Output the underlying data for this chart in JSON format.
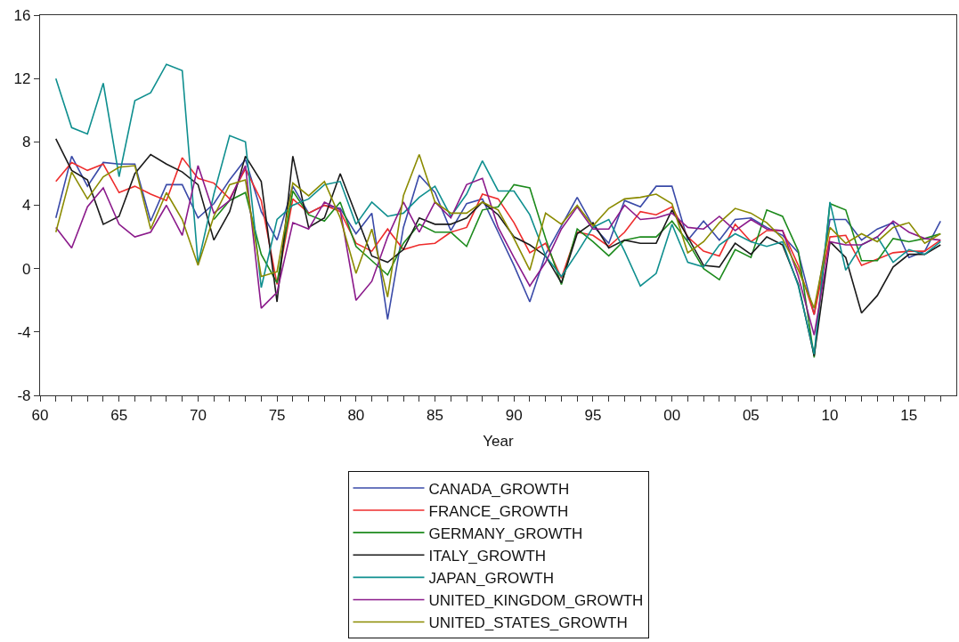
{
  "chart_data": {
    "type": "line",
    "xlabel": "Year",
    "x": [
      1961,
      1962,
      1963,
      1964,
      1965,
      1966,
      1967,
      1968,
      1969,
      1970,
      1971,
      1972,
      1973,
      1974,
      1975,
      1976,
      1977,
      1978,
      1979,
      1980,
      1981,
      1982,
      1983,
      1984,
      1985,
      1986,
      1987,
      1988,
      1989,
      1990,
      1991,
      1992,
      1993,
      1994,
      1995,
      1996,
      1997,
      1998,
      1999,
      2000,
      2001,
      2002,
      2003,
      2004,
      2005,
      2006,
      2007,
      2008,
      2009,
      2010,
      2011,
      2012,
      2013,
      2014,
      2015,
      2016,
      2017
    ],
    "series": [
      {
        "name": "CANADA_GROWTH",
        "color": "#3a4aa8",
        "values": [
          3.2,
          7.1,
          5.2,
          6.7,
          6.6,
          6.6,
          3.0,
          5.3,
          5.3,
          3.2,
          4.1,
          5.6,
          6.9,
          3.6,
          1.8,
          5.2,
          3.5,
          4.0,
          3.8,
          2.2,
          3.5,
          -3.2,
          2.6,
          5.9,
          4.8,
          2.4,
          4.1,
          4.4,
          2.3,
          0.2,
          -2.1,
          0.9,
          2.7,
          4.5,
          2.7,
          1.6,
          4.3,
          3.9,
          5.2,
          5.2,
          1.8,
          3.0,
          1.8,
          3.1,
          3.2,
          2.6,
          2.1,
          1.0,
          -2.9,
          3.1,
          3.1,
          1.8,
          2.5,
          2.9,
          0.7,
          1.1,
          3.0
        ]
      },
      {
        "name": "FRANCE_GROWTH",
        "color": "#ee2c2c",
        "values": [
          5.5,
          6.7,
          6.2,
          6.6,
          4.8,
          5.2,
          4.7,
          4.3,
          7.0,
          5.7,
          5.4,
          4.4,
          6.3,
          4.3,
          -1.0,
          4.4,
          3.5,
          4.0,
          3.6,
          1.6,
          1.1,
          2.5,
          1.2,
          1.5,
          1.6,
          2.3,
          2.6,
          4.7,
          4.4,
          2.9,
          1.0,
          1.6,
          -0.6,
          2.3,
          2.1,
          1.4,
          2.3,
          3.6,
          3.4,
          3.9,
          2.0,
          1.1,
          0.8,
          2.8,
          1.7,
          2.4,
          2.4,
          0.2,
          -2.9,
          2.0,
          2.1,
          0.2,
          0.6,
          1.0,
          1.1,
          1.1,
          1.8
        ]
      },
      {
        "name": "GERMANY_GROWTH",
        "color": "#1c8a1c",
        "values": [
          null,
          null,
          null,
          null,
          null,
          null,
          null,
          null,
          null,
          null,
          3.1,
          4.3,
          4.8,
          0.9,
          -0.9,
          4.9,
          3.4,
          3.0,
          4.2,
          1.4,
          0.5,
          -0.4,
          1.6,
          2.8,
          2.3,
          2.3,
          1.4,
          3.7,
          3.9,
          5.3,
          5.1,
          1.9,
          -1.0,
          2.5,
          1.7,
          0.8,
          1.8,
          2.0,
          2.0,
          3.0,
          1.7,
          0.0,
          -0.7,
          1.2,
          0.7,
          3.7,
          3.3,
          1.1,
          -5.6,
          4.1,
          3.7,
          0.5,
          0.5,
          1.9,
          1.7,
          1.9,
          2.2
        ]
      },
      {
        "name": "ITALY_GROWTH",
        "color": "#1a1a1a",
        "values": [
          8.2,
          6.2,
          5.6,
          2.8,
          3.3,
          6.0,
          7.2,
          6.6,
          6.1,
          5.3,
          1.8,
          3.6,
          7.1,
          5.5,
          -2.1,
          7.1,
          2.6,
          3.2,
          6.0,
          3.4,
          0.8,
          0.4,
          1.2,
          3.2,
          2.8,
          2.8,
          3.2,
          4.2,
          3.4,
          2.0,
          1.5,
          0.8,
          -0.9,
          2.2,
          2.9,
          1.3,
          1.8,
          1.6,
          1.6,
          3.7,
          2.0,
          0.2,
          0.1,
          1.6,
          0.9,
          2.0,
          1.5,
          -1.0,
          -5.5,
          1.7,
          0.7,
          -2.8,
          -1.7,
          0.1,
          0.9,
          0.9,
          1.5
        ]
      },
      {
        "name": "JAPAN_GROWTH",
        "color": "#0f8f8f",
        "values": [
          12.0,
          8.9,
          8.5,
          11.7,
          5.8,
          10.6,
          11.1,
          12.9,
          12.5,
          0.3,
          4.7,
          8.4,
          8.0,
          -1.2,
          3.1,
          4.0,
          4.4,
          5.3,
          5.5,
          2.8,
          4.2,
          3.3,
          3.5,
          4.5,
          5.2,
          3.3,
          4.7,
          6.8,
          4.9,
          4.9,
          3.4,
          0.8,
          -0.5,
          1.0,
          2.6,
          3.1,
          1.1,
          -1.1,
          -0.3,
          2.8,
          0.4,
          0.1,
          1.5,
          2.2,
          1.7,
          1.4,
          1.7,
          -1.1,
          -5.4,
          4.2,
          -0.1,
          1.5,
          2.0,
          0.4,
          1.2,
          0.9,
          1.7
        ]
      },
      {
        "name": "UNITED_KINGDOM_GROWTH",
        "color": "#8b1a8b",
        "values": [
          2.6,
          1.3,
          3.9,
          5.1,
          2.8,
          2.0,
          2.3,
          4.0,
          2.1,
          6.5,
          3.5,
          4.3,
          6.5,
          -2.5,
          -1.5,
          2.9,
          2.5,
          4.2,
          3.7,
          -2.0,
          -0.8,
          2.0,
          4.2,
          2.3,
          4.2,
          3.2,
          5.3,
          5.7,
          2.6,
          0.7,
          -1.1,
          0.4,
          2.5,
          3.9,
          2.5,
          2.5,
          4.0,
          3.1,
          3.2,
          3.5,
          2.6,
          2.5,
          3.3,
          2.4,
          3.1,
          2.5,
          2.4,
          -0.5,
          -4.2,
          1.7,
          1.5,
          1.5,
          2.0,
          3.0,
          2.3,
          1.9,
          1.8
        ]
      },
      {
        "name": "UNITED_STATES_GROWTH",
        "color": "#8b8b00",
        "values": [
          2.3,
          6.1,
          4.4,
          5.8,
          6.4,
          6.5,
          2.5,
          4.8,
          3.1,
          0.2,
          3.3,
          5.3,
          5.6,
          -0.5,
          -0.2,
          5.4,
          4.6,
          5.5,
          3.2,
          -0.3,
          2.5,
          -1.8,
          4.6,
          7.2,
          4.2,
          3.5,
          3.5,
          4.2,
          3.7,
          1.9,
          -0.1,
          3.5,
          2.8,
          4.0,
          2.7,
          3.8,
          4.4,
          4.5,
          4.7,
          4.1,
          1.0,
          1.7,
          2.9,
          3.8,
          3.5,
          2.9,
          1.9,
          -0.1,
          -2.5,
          2.6,
          1.6,
          2.2,
          1.7,
          2.6,
          2.9,
          1.6,
          2.2
        ]
      }
    ],
    "xlim": [
      1960,
      2018
    ],
    "xticks": [
      {
        "value": 1960,
        "label": "60"
      },
      {
        "value": 1961,
        "label": null
      },
      {
        "value": 1962,
        "label": null
      },
      {
        "value": 1963,
        "label": null
      },
      {
        "value": 1964,
        "label": null
      },
      {
        "value": 1965,
        "label": "65"
      },
      {
        "value": 1966,
        "label": null
      },
      {
        "value": 1967,
        "label": null
      },
      {
        "value": 1968,
        "label": null
      },
      {
        "value": 1969,
        "label": null
      },
      {
        "value": 1970,
        "label": "70"
      },
      {
        "value": 1971,
        "label": null
      },
      {
        "value": 1972,
        "label": null
      },
      {
        "value": 1973,
        "label": null
      },
      {
        "value": 1974,
        "label": null
      },
      {
        "value": 1975,
        "label": "75"
      },
      {
        "value": 1976,
        "label": null
      },
      {
        "value": 1977,
        "label": null
      },
      {
        "value": 1978,
        "label": null
      },
      {
        "value": 1979,
        "label": null
      },
      {
        "value": 1980,
        "label": "80"
      },
      {
        "value": 1981,
        "label": null
      },
      {
        "value": 1982,
        "label": null
      },
      {
        "value": 1983,
        "label": null
      },
      {
        "value": 1984,
        "label": null
      },
      {
        "value": 1985,
        "label": "85"
      },
      {
        "value": 1986,
        "label": null
      },
      {
        "value": 1987,
        "label": null
      },
      {
        "value": 1988,
        "label": null
      },
      {
        "value": 1989,
        "label": null
      },
      {
        "value": 1990,
        "label": "90"
      },
      {
        "value": 1991,
        "label": null
      },
      {
        "value": 1992,
        "label": null
      },
      {
        "value": 1993,
        "label": null
      },
      {
        "value": 1994,
        "label": null
      },
      {
        "value": 1995,
        "label": "95"
      },
      {
        "value": 1996,
        "label": null
      },
      {
        "value": 1997,
        "label": null
      },
      {
        "value": 1998,
        "label": null
      },
      {
        "value": 1999,
        "label": null
      },
      {
        "value": 2000,
        "label": "00"
      },
      {
        "value": 2001,
        "label": null
      },
      {
        "value": 2002,
        "label": null
      },
      {
        "value": 2003,
        "label": null
      },
      {
        "value": 2004,
        "label": null
      },
      {
        "value": 2005,
        "label": "05"
      },
      {
        "value": 2006,
        "label": null
      },
      {
        "value": 2007,
        "label": null
      },
      {
        "value": 2008,
        "label": null
      },
      {
        "value": 2009,
        "label": null
      },
      {
        "value": 2010,
        "label": "10"
      },
      {
        "value": 2011,
        "label": null
      },
      {
        "value": 2012,
        "label": null
      },
      {
        "value": 2013,
        "label": null
      },
      {
        "value": 2014,
        "label": null
      },
      {
        "value": 2015,
        "label": "15"
      },
      {
        "value": 2016,
        "label": null
      },
      {
        "value": 2017,
        "label": null
      }
    ],
    "ylim": [
      -8,
      16
    ],
    "yticks": [
      -8,
      -4,
      0,
      4,
      8,
      12,
      16
    ],
    "grid": false,
    "legend": "bottom",
    "marker": "none",
    "line_style": "solid"
  }
}
